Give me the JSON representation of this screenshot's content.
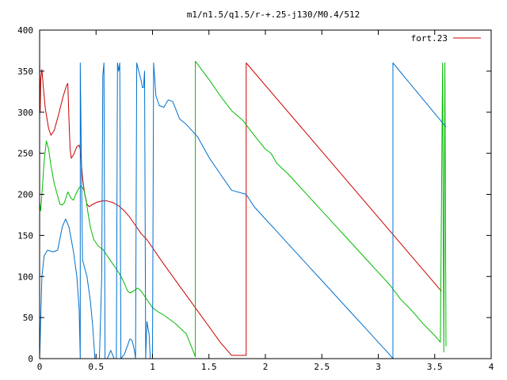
{
  "chart_data": {
    "type": "line",
    "title": "m1/n1.5/q1.5/r-+.25-j130/M0.4/512",
    "xlim": [
      0,
      4
    ],
    "ylim": [
      0,
      400
    ],
    "x_ticks": [
      "0",
      "0.5",
      "1",
      "1.5",
      "2",
      "2.5",
      "3",
      "3.5",
      "4"
    ],
    "y_ticks": [
      "0",
      "50",
      "100",
      "150",
      "200",
      "250",
      "300",
      "350",
      "400"
    ],
    "grid": false,
    "legend_position": "top-right",
    "series": [
      {
        "name": "fort.23",
        "color": "#cc0000",
        "points": [
          [
            0,
            360
          ],
          [
            0.005,
            300
          ],
          [
            0.01,
            340
          ],
          [
            0.02,
            352
          ],
          [
            0.03,
            335
          ],
          [
            0.05,
            305
          ],
          [
            0.08,
            280
          ],
          [
            0.1,
            272
          ],
          [
            0.13,
            278
          ],
          [
            0.17,
            298
          ],
          [
            0.21,
            320
          ],
          [
            0.24,
            333
          ],
          [
            0.25,
            335
          ],
          [
            0.26,
            290
          ],
          [
            0.27,
            255
          ],
          [
            0.28,
            244
          ],
          [
            0.3,
            248
          ],
          [
            0.33,
            258
          ],
          [
            0.35,
            260
          ],
          [
            0.36,
            255
          ],
          [
            0.38,
            220
          ],
          [
            0.4,
            200
          ],
          [
            0.42,
            188
          ],
          [
            0.44,
            185
          ],
          [
            0.46,
            187
          ],
          [
            0.5,
            190
          ],
          [
            0.55,
            192
          ],
          [
            0.6,
            192
          ],
          [
            0.65,
            190
          ],
          [
            0.7,
            186
          ],
          [
            0.75,
            180
          ],
          [
            0.8,
            172
          ],
          [
            0.85,
            162
          ],
          [
            0.9,
            152
          ],
          [
            0.95,
            145
          ],
          [
            1.0,
            135
          ],
          [
            1.05,
            125
          ],
          [
            1.1,
            115
          ],
          [
            1.2,
            96
          ],
          [
            1.3,
            77
          ],
          [
            1.4,
            58
          ],
          [
            1.5,
            39
          ],
          [
            1.6,
            20
          ],
          [
            1.7,
            4
          ],
          [
            1.83,
            4
          ],
          [
            1.83,
            360
          ],
          [
            3.56,
            82
          ]
        ]
      },
      {
        "name": "",
        "color": "#00bb00",
        "points": [
          [
            0,
            190
          ],
          [
            0.01,
            180
          ],
          [
            0.02,
            200
          ],
          [
            0.04,
            240
          ],
          [
            0.06,
            265
          ],
          [
            0.08,
            255
          ],
          [
            0.1,
            235
          ],
          [
            0.13,
            213
          ],
          [
            0.16,
            198
          ],
          [
            0.18,
            188
          ],
          [
            0.2,
            187
          ],
          [
            0.22,
            190
          ],
          [
            0.25,
            203
          ],
          [
            0.28,
            195
          ],
          [
            0.3,
            193
          ],
          [
            0.32,
            200
          ],
          [
            0.35,
            208
          ],
          [
            0.37,
            210
          ],
          [
            0.39,
            206
          ],
          [
            0.41,
            195
          ],
          [
            0.43,
            176
          ],
          [
            0.45,
            160
          ],
          [
            0.48,
            145
          ],
          [
            0.52,
            137
          ],
          [
            0.56,
            133
          ],
          [
            0.6,
            125
          ],
          [
            0.65,
            115
          ],
          [
            0.7,
            105
          ],
          [
            0.74,
            95
          ],
          [
            0.78,
            82
          ],
          [
            0.8,
            80
          ],
          [
            0.84,
            83
          ],
          [
            0.87,
            86
          ],
          [
            0.9,
            82
          ],
          [
            0.95,
            72
          ],
          [
            1.0,
            62
          ],
          [
            1.05,
            57
          ],
          [
            1.1,
            53
          ],
          [
            1.2,
            43
          ],
          [
            1.3,
            30
          ],
          [
            1.37,
            6
          ],
          [
            1.38,
            2
          ],
          [
            1.38,
            362
          ],
          [
            1.5,
            340
          ],
          [
            1.6,
            320
          ],
          [
            1.7,
            302
          ],
          [
            1.8,
            290
          ],
          [
            1.9,
            272
          ],
          [
            2.0,
            255
          ],
          [
            2.05,
            250
          ],
          [
            2.1,
            238
          ],
          [
            2.2,
            225
          ],
          [
            2.3,
            210
          ],
          [
            2.4,
            195
          ],
          [
            2.5,
            180
          ],
          [
            2.6,
            165
          ],
          [
            2.7,
            150
          ],
          [
            2.8,
            135
          ],
          [
            2.9,
            120
          ],
          [
            3.0,
            105
          ],
          [
            3.1,
            90
          ],
          [
            3.2,
            72
          ],
          [
            3.3,
            58
          ],
          [
            3.4,
            42
          ],
          [
            3.5,
            28
          ],
          [
            3.55,
            20
          ],
          [
            3.57,
            360
          ],
          [
            3.58,
            8
          ],
          [
            3.59,
            360
          ],
          [
            3.6,
            15
          ]
        ]
      },
      {
        "name": "",
        "color": "#0070cc",
        "points": [
          [
            0,
            0
          ],
          [
            0.02,
            100
          ],
          [
            0.04,
            125
          ],
          [
            0.07,
            132
          ],
          [
            0.12,
            130
          ],
          [
            0.16,
            132
          ],
          [
            0.2,
            160
          ],
          [
            0.23,
            170
          ],
          [
            0.26,
            160
          ],
          [
            0.3,
            130
          ],
          [
            0.33,
            100
          ],
          [
            0.35,
            60
          ],
          [
            0.36,
            0
          ],
          [
            0.36,
            360
          ],
          [
            0.38,
            120
          ],
          [
            0.42,
            100
          ],
          [
            0.45,
            70
          ],
          [
            0.47,
            40
          ],
          [
            0.49,
            0
          ],
          [
            0.53,
            0
          ],
          [
            0.55,
            100
          ],
          [
            0.56,
            345
          ],
          [
            0.57,
            360
          ],
          [
            0.58,
            0
          ],
          [
            0.6,
            0
          ],
          [
            0.63,
            10
          ],
          [
            0.66,
            0
          ],
          [
            0.68,
            0
          ],
          [
            0.69,
            360
          ],
          [
            0.7,
            350
          ],
          [
            0.71,
            360
          ],
          [
            0.72,
            0
          ],
          [
            0.75,
            5
          ],
          [
            0.8,
            24
          ],
          [
            0.82,
            22
          ],
          [
            0.84,
            10
          ],
          [
            0.85,
            0
          ],
          [
            0.86,
            360
          ],
          [
            0.9,
            338
          ],
          [
            0.91,
            330
          ],
          [
            0.92,
            330
          ],
          [
            0.93,
            350
          ],
          [
            0.94,
            0
          ],
          [
            0.95,
            45
          ],
          [
            0.97,
            30
          ],
          [
            0.98,
            0
          ],
          [
            1.0,
            0
          ],
          [
            1.01,
            360
          ],
          [
            1.03,
            320
          ],
          [
            1.06,
            308
          ],
          [
            1.1,
            306
          ],
          [
            1.14,
            315
          ],
          [
            1.18,
            313
          ],
          [
            1.24,
            292
          ],
          [
            1.3,
            285
          ],
          [
            1.4,
            270
          ],
          [
            1.5,
            245
          ],
          [
            1.6,
            225
          ],
          [
            1.7,
            205
          ],
          [
            1.83,
            200
          ],
          [
            1.9,
            185
          ],
          [
            2.0,
            170
          ],
          [
            2.1,
            155
          ],
          [
            2.2,
            140
          ],
          [
            2.3,
            125
          ],
          [
            2.4,
            110
          ],
          [
            2.5,
            95
          ],
          [
            2.6,
            80
          ],
          [
            2.7,
            65
          ],
          [
            2.8,
            50
          ],
          [
            2.9,
            35
          ],
          [
            3.0,
            20
          ],
          [
            3.1,
            5
          ],
          [
            3.13,
            0
          ],
          [
            3.13,
            360
          ],
          [
            3.6,
            282
          ]
        ]
      }
    ]
  }
}
